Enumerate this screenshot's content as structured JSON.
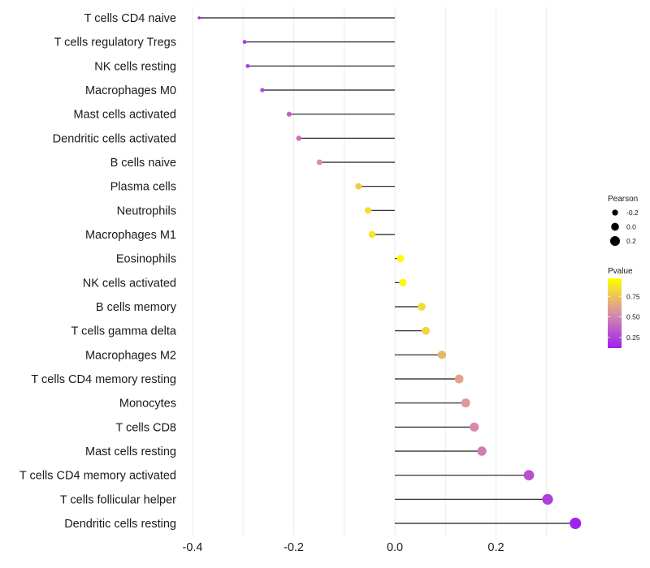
{
  "chart_data": {
    "type": "lollipop",
    "title": "",
    "xlabel": "",
    "ylabel": "",
    "xlim": [
      -0.4,
      0.36
    ],
    "x_ticks": [
      -0.4,
      -0.2,
      0.0,
      0.2
    ],
    "x_tick_labels": [
      "-0.4",
      "-0.2",
      "0.0",
      "0.2"
    ],
    "grid": true,
    "baseline": 0.0,
    "categories": [
      "T cells CD4 naive",
      "T cells regulatory  Tregs ",
      "NK cells resting",
      "Macrophages M0",
      "Mast cells activated",
      "Dendritic cells activated",
      "B cells naive",
      "Plasma cells",
      "Neutrophils",
      "Macrophages M1",
      "Eosinophils",
      "NK cells activated",
      "B cells memory",
      "T cells gamma delta",
      "Macrophages M2",
      "T cells CD4 memory resting",
      "Monocytes",
      "T cells CD8",
      "Mast cells resting",
      "T cells CD4 memory activated",
      "T cells follicular helper",
      "Dendritic cells resting"
    ],
    "pearson": [
      -0.387,
      -0.297,
      -0.291,
      -0.262,
      -0.209,
      -0.19,
      -0.149,
      -0.072,
      -0.053,
      -0.045,
      0.011,
      0.016,
      0.053,
      0.061,
      0.093,
      0.127,
      0.14,
      0.157,
      0.172,
      0.265,
      0.302,
      0.357
    ],
    "pvalue": [
      0.12,
      0.22,
      0.24,
      0.28,
      0.38,
      0.42,
      0.55,
      0.78,
      0.85,
      0.88,
      0.96,
      0.94,
      0.83,
      0.81,
      0.7,
      0.62,
      0.58,
      0.52,
      0.47,
      0.3,
      0.24,
      0.13
    ],
    "legend": {
      "placement": "right",
      "size": {
        "title": "Pearson",
        "entries": [
          {
            "label": "-0.2",
            "value": -0.2
          },
          {
            "label": "0.0",
            "value": 0.0
          },
          {
            "label": "0.2",
            "value": 0.2
          }
        ]
      },
      "color": {
        "title": "Pvalue",
        "range": [
          0.12,
          0.97
        ],
        "ticks": [
          0.25,
          0.5,
          0.75
        ],
        "tick_labels": [
          "0.25",
          "0.50",
          "0.75"
        ],
        "low_color": "#A020F0",
        "mid_color": "#D98FA8",
        "high_color": "#FFFF00"
      }
    },
    "colors": {
      "segment": "#1a1a1a",
      "grid": "#ebebeb"
    }
  }
}
